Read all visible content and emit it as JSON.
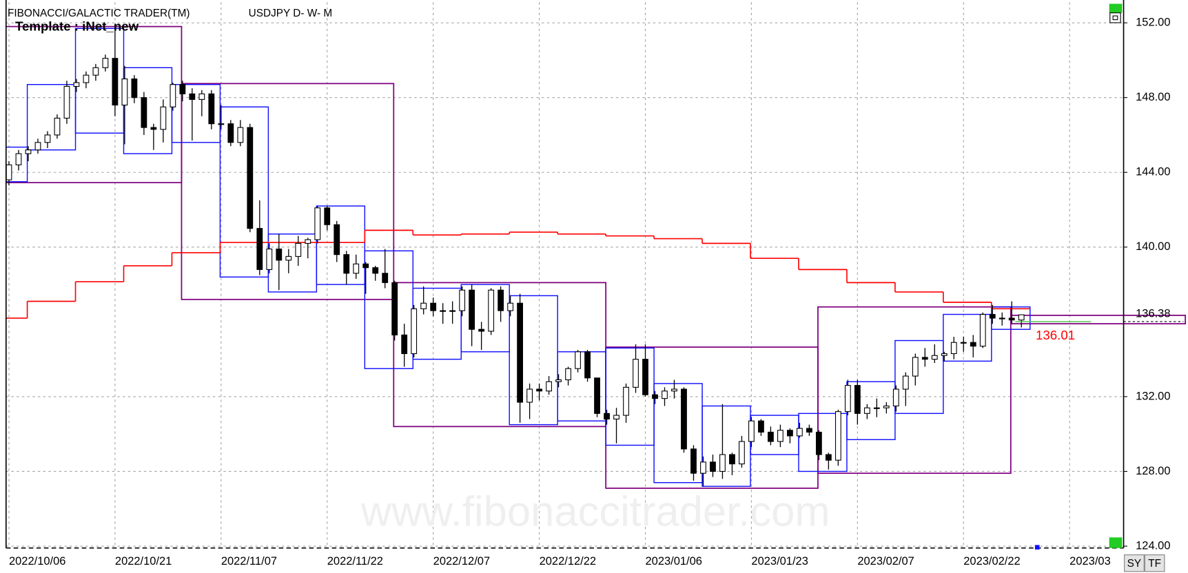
{
  "chart_data": {
    "type": "candlestick",
    "title": "FIBONACCI/GALACTIC TRADER(TM)",
    "subtitle": "USDJPY D- W- M",
    "annotation": "Template : iNet_new",
    "watermark": "www.fibonaccitrader.com",
    "buttons": [
      "SY",
      "TF"
    ],
    "open": [
      143.6,
      144.4,
      145.0,
      145.2,
      145.6,
      146.0,
      146.9,
      148.6,
      148.8,
      149.2,
      149.6,
      150.1,
      147.6,
      149.0,
      148.0,
      146.4,
      146.3,
      147.5,
      148.7,
      148.2,
      147.9,
      148.2,
      146.6,
      146.6,
      145.6,
      146.4,
      141.0,
      138.8,
      139.9,
      139.3,
      139.5,
      140.2,
      140.4,
      142.1,
      141.2,
      139.6,
      138.6,
      139.1,
      138.9,
      138.6,
      138.1,
      135.3,
      134.3,
      136.7,
      137.0,
      136.6,
      136.6,
      136.6,
      137.7,
      135.6,
      135.5,
      137.7,
      136.6,
      137.0,
      131.7,
      132.4,
      132.3,
      132.8,
      132.9,
      133.5,
      134.4,
      133.0,
      131.1,
      130.8,
      131.0,
      132.5,
      134.0,
      132.1,
      131.9,
      132.3,
      132.4,
      129.2,
      127.9,
      128.5,
      128.0,
      128.9,
      128.4,
      129.6,
      130.7,
      130.1,
      129.6,
      130.2,
      129.9,
      130.3,
      130.1,
      128.9,
      128.6,
      131.2,
      132.6,
      131.1,
      131.4,
      131.4,
      131.5,
      132.4,
      133.1,
      134.1,
      134.0,
      134.2,
      134.3,
      134.9,
      134.9,
      134.7,
      136.4,
      136.2,
      136.2,
      136.1
    ],
    "high": [
      144.6,
      145.2,
      145.4,
      145.8,
      146.2,
      147.1,
      148.9,
      149.0,
      149.4,
      149.8,
      150.3,
      151.9,
      149.7,
      149.2,
      148.3,
      146.6,
      147.9,
      148.8,
      148.9,
      148.5,
      148.4,
      148.4,
      147.6,
      146.8,
      146.8,
      146.6,
      142.5,
      140.2,
      140.7,
      139.9,
      140.6,
      140.5,
      142.2,
      142.2,
      141.4,
      139.8,
      139.6,
      139.2,
      139.0,
      139.9,
      138.2,
      135.9,
      136.9,
      137.9,
      137.3,
      137.0,
      137.1,
      137.9,
      138.0,
      136.0,
      137.8,
      137.9,
      137.4,
      137.5,
      132.7,
      132.7,
      133.1,
      133.2,
      133.6,
      134.5,
      134.5,
      133.0,
      131.3,
      131.4,
      132.7,
      134.8,
      134.8,
      132.3,
      132.5,
      132.9,
      132.5,
      129.4,
      128.8,
      128.9,
      131.6,
      129.0,
      129.9,
      130.9,
      130.8,
      130.4,
      130.5,
      130.3,
      130.6,
      130.5,
      130.2,
      129.0,
      131.3,
      132.9,
      132.9,
      131.6,
      131.9,
      131.7,
      132.6,
      133.3,
      134.3,
      134.6,
      134.8,
      134.4,
      135.2,
      135.2,
      135.3,
      136.5,
      136.9,
      136.5,
      137.1,
      136.4
    ],
    "low": [
      143.3,
      144.1,
      144.6,
      145.0,
      145.3,
      145.8,
      146.6,
      148.3,
      148.5,
      148.9,
      149.4,
      147.0,
      145.5,
      147.7,
      146.0,
      145.2,
      145.6,
      147.3,
      147.8,
      145.7,
      147.0,
      146.3,
      146.3,
      145.4,
      145.4,
      140.8,
      138.5,
      138.6,
      137.7,
      138.6,
      139.0,
      139.4,
      140.2,
      140.9,
      139.2,
      138.0,
      138.3,
      137.5,
      138.2,
      137.8,
      135.0,
      133.6,
      134.1,
      136.4,
      136.3,
      135.9,
      135.9,
      136.3,
      134.7,
      134.5,
      135.3,
      136.0,
      136.3,
      130.6,
      130.8,
      131.8,
      132.1,
      132.5,
      132.6,
      133.3,
      132.8,
      130.9,
      130.5,
      129.5,
      130.6,
      132.2,
      132.0,
      131.6,
      131.5,
      131.9,
      129.0,
      127.5,
      127.2,
      127.7,
      127.6,
      127.8,
      128.2,
      129.3,
      129.9,
      129.4,
      129.3,
      129.5,
      129.8,
      129.9,
      128.6,
      128.1,
      128.3,
      131.0,
      130.5,
      130.8,
      130.9,
      131.1,
      131.2,
      131.5,
      132.6,
      133.6,
      133.8,
      133.9,
      134.0,
      134.4,
      134.1,
      134.6,
      135.9,
      135.8,
      135.9,
      135.7
    ],
    "close": [
      144.4,
      145.0,
      145.2,
      145.6,
      146.0,
      146.9,
      148.6,
      148.8,
      149.2,
      149.6,
      150.1,
      147.6,
      149.0,
      148.0,
      146.4,
      146.3,
      147.5,
      148.7,
      148.2,
      147.9,
      148.2,
      146.6,
      146.6,
      145.6,
      146.4,
      141.0,
      138.8,
      139.9,
      139.3,
      139.5,
      140.2,
      140.4,
      142.1,
      141.2,
      139.6,
      138.6,
      139.1,
      138.9,
      138.6,
      138.1,
      135.3,
      134.3,
      136.7,
      137.0,
      136.6,
      136.6,
      136.6,
      137.7,
      135.6,
      135.5,
      137.7,
      136.6,
      137.0,
      131.7,
      132.4,
      132.3,
      132.8,
      132.9,
      133.5,
      134.4,
      133.0,
      131.1,
      130.8,
      131.0,
      132.5,
      134.0,
      132.1,
      131.9,
      132.3,
      132.4,
      129.2,
      127.9,
      128.5,
      128.0,
      128.9,
      128.4,
      129.6,
      130.7,
      130.1,
      129.6,
      130.2,
      129.9,
      130.3,
      130.1,
      128.9,
      128.6,
      131.2,
      132.6,
      131.1,
      131.4,
      131.4,
      131.5,
      132.4,
      133.1,
      134.1,
      134.0,
      134.2,
      134.3,
      134.9,
      134.9,
      134.7,
      136.4,
      136.2,
      136.2,
      136.1,
      136.38
    ],
    "up_color": "#ffffff",
    "down_color": "#000000",
    "xlim": [
      -0.3,
      115.6
    ],
    "ylim": [
      123.9,
      153.1
    ],
    "xticks": [
      {
        "value": 0,
        "label": "2022/10/06"
      },
      {
        "value": 11,
        "label": "2022/10/21"
      },
      {
        "value": 22,
        "label": "2022/11/07"
      },
      {
        "value": 33,
        "label": "2022/11/22"
      },
      {
        "value": 44,
        "label": "2022/12/07"
      },
      {
        "value": 55,
        "label": "2022/12/22"
      },
      {
        "value": 66,
        "label": "2023/01/06"
      },
      {
        "value": 77,
        "label": "2023/01/23"
      },
      {
        "value": 88,
        "label": "2023/02/07"
      },
      {
        "value": 99,
        "label": "2023/02/22"
      },
      {
        "value": 110,
        "label": "2023/03"
      }
    ],
    "yticks": [
      {
        "value": 124,
        "label": "124.00"
      },
      {
        "value": 128,
        "label": "128.00"
      },
      {
        "value": 132,
        "label": "132.00"
      },
      {
        "value": 140,
        "label": "140.00"
      },
      {
        "value": 144,
        "label": "144.00"
      },
      {
        "value": 148,
        "label": "148.00"
      },
      {
        "value": 152,
        "label": "152.00"
      }
    ],
    "grid": true,
    "weekly_boxes": {
      "color": "#1010ff",
      "edges": [
        -1,
        1.9,
        6.9,
        11.9,
        16.9,
        21.9,
        26.9,
        31.9,
        36.9,
        41.9,
        46.9,
        51.9,
        56.9,
        61.9,
        66.9,
        71.9,
        76.9,
        81.9,
        86.9,
        91.9,
        96.9,
        101.9,
        105.9
      ],
      "high": [
        145.35,
        148.7,
        151.7,
        149.6,
        148.7,
        147.5,
        140.7,
        142.2,
        139.8,
        137.8,
        138.0,
        137.4,
        134.4,
        134.6,
        132.7,
        131.5,
        131.0,
        131.1,
        132.8,
        135.0,
        136.4,
        136.8
      ],
      "low": [
        143.5,
        145.2,
        146.1,
        145.0,
        145.6,
        138.4,
        137.6,
        138.0,
        133.5,
        134.0,
        134.4,
        130.5,
        130.7,
        129.4,
        127.4,
        127.2,
        128.9,
        128.0,
        129.7,
        131.1,
        133.9,
        135.6
      ]
    },
    "monthly_boxes": {
      "color": "#800080",
      "edges": [
        -1,
        17.9,
        39.9,
        61.9,
        83.9,
        103.9,
        122
      ],
      "high": [
        151.8,
        148.75,
        138.1,
        134.65,
        136.8,
        136.35
      ],
      "low": [
        143.45,
        137.2,
        130.4,
        127.1,
        127.9,
        135.9
      ]
    },
    "step_line": {
      "color": "#ff0000",
      "edges": [
        -1,
        1.9,
        6.9,
        11.9,
        16.9,
        21.9,
        36.9,
        41.9,
        46.9,
        51.9,
        56.9,
        61.9,
        66.9,
        71.9,
        76.9,
        81.9,
        86.9,
        91.9,
        96.9,
        101.9,
        105.9
      ],
      "values": [
        136.2,
        137.1,
        138.15,
        139.0,
        139.7,
        140.25,
        140.9,
        140.65,
        140.7,
        140.8,
        140.7,
        140.6,
        140.45,
        140.2,
        139.4,
        138.8,
        138.1,
        137.6,
        137.05,
        136.7
      ]
    },
    "last_price": 136.38,
    "marker_level": {
      "value": 136.01,
      "color": "#ff0000",
      "line_color": "#40c040"
    }
  }
}
